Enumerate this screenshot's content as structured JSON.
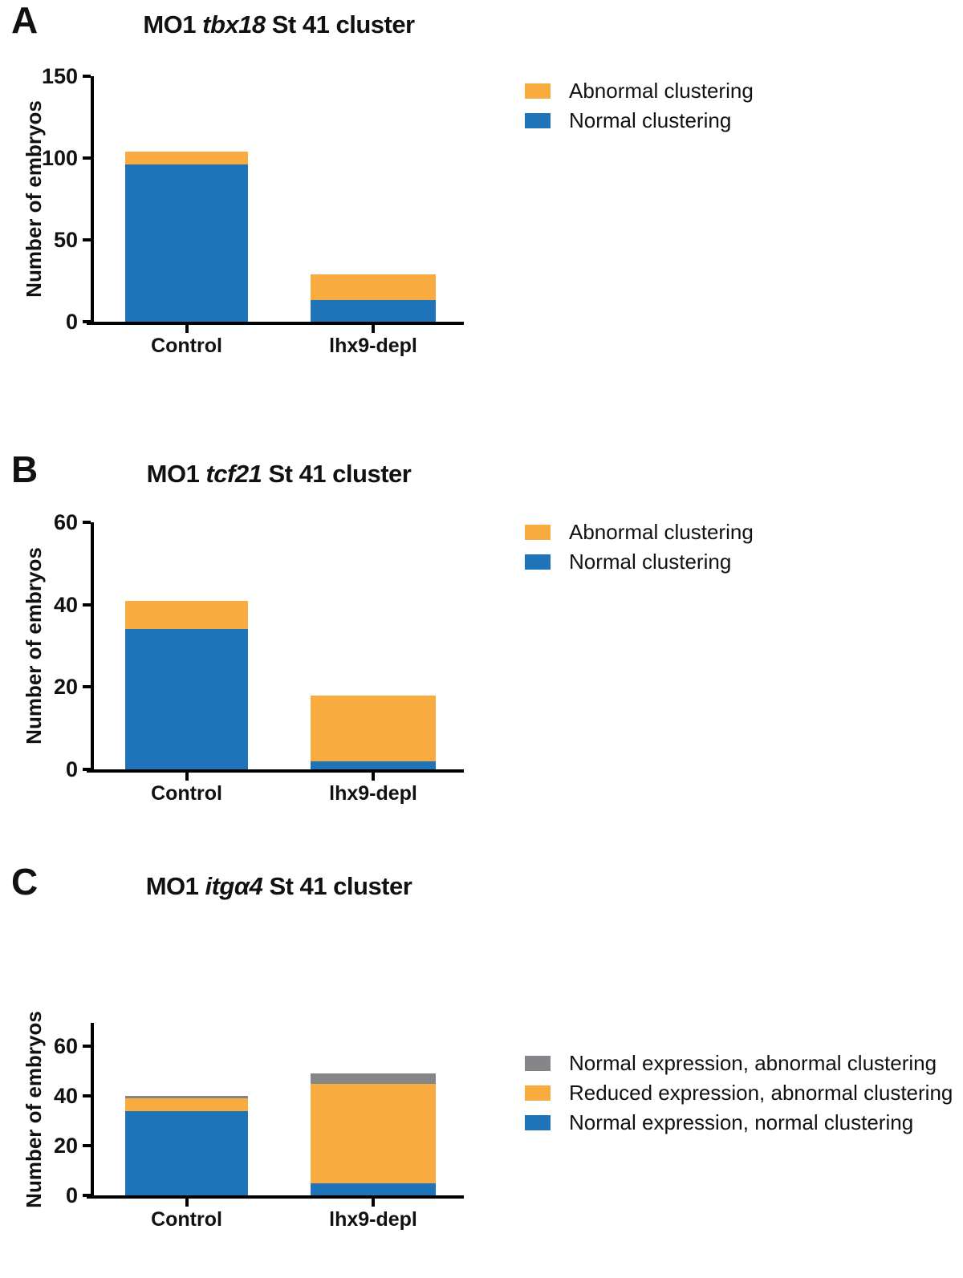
{
  "figure": {
    "background": "#FFFFFF"
  },
  "colors": {
    "blue": "#1F73B9",
    "orange": "#F8AC40",
    "gray": "#85868A",
    "axis": "#000000"
  },
  "chart_data": [
    {
      "type": "bar",
      "stacked": true,
      "panel_label": "A",
      "title": "MO1 tbx18 St 41 cluster",
      "title_prefix": "MO1 ",
      "title_gene": "tbx18",
      "title_suffix": " St 41 cluster",
      "xlabel": "",
      "ylabel": "Number of embryos",
      "categories": [
        "Control",
        "lhx9-depl"
      ],
      "series": [
        {
          "name": "Normal clustering",
          "color": "#1F73B9",
          "values": [
            96,
            13
          ]
        },
        {
          "name": "Abnormal clustering",
          "color": "#F8AC40",
          "values": [
            8,
            16
          ]
        }
      ],
      "totals": [
        104,
        29
      ],
      "ylim": [
        0,
        150
      ],
      "yticks": [
        0,
        50,
        100,
        150
      ],
      "grid": false,
      "legend_position": "right-top",
      "legend": [
        {
          "label": "Abnormal clustering",
          "color": "#F8AC40"
        },
        {
          "label": "Normal clustering",
          "color": "#1F73B9"
        }
      ]
    },
    {
      "type": "bar",
      "stacked": true,
      "panel_label": "B",
      "title": "MO1 tcf21 St 41 cluster",
      "title_prefix": "MO1 ",
      "title_gene": "tcf21",
      "title_suffix": " St 41 cluster",
      "xlabel": "",
      "ylabel": "Number of embryos",
      "categories": [
        "Control",
        "lhx9-depl"
      ],
      "series": [
        {
          "name": "Normal clustering",
          "color": "#1F73B9",
          "values": [
            34,
            2
          ]
        },
        {
          "name": "Abnormal clustering",
          "color": "#F8AC40",
          "values": [
            7,
            16
          ]
        }
      ],
      "totals": [
        41,
        18
      ],
      "ylim": [
        0,
        60
      ],
      "yticks": [
        0,
        20,
        40,
        60
      ],
      "grid": false,
      "legend_position": "right-top",
      "legend": [
        {
          "label": "Abnormal clustering",
          "color": "#F8AC40"
        },
        {
          "label": "Normal clustering",
          "color": "#1F73B9"
        }
      ]
    },
    {
      "type": "bar",
      "stacked": true,
      "panel_label": "C",
      "title": "MO1 itgα4 St 41 cluster",
      "title_prefix": "MO1 ",
      "title_gene": "itgα4",
      "title_suffix": " St 41 cluster",
      "xlabel": "",
      "ylabel": "Number of embryos",
      "categories": [
        "Control",
        "lhx9-depl"
      ],
      "series": [
        {
          "name": "Normal expression, normal clustering",
          "color": "#1F73B9",
          "values": [
            34,
            5
          ]
        },
        {
          "name": "Reduced expression, abnormal clustering",
          "color": "#F8AC40",
          "values": [
            5,
            40
          ]
        },
        {
          "name": "Normal expression, abnormal clustering",
          "color": "#85868A",
          "values": [
            1,
            4
          ]
        }
      ],
      "totals": [
        40,
        49
      ],
      "ylim": [
        0,
        69
      ],
      "yticks": [
        0,
        20,
        40,
        60
      ],
      "grid": false,
      "legend_position": "right-top",
      "legend": [
        {
          "label": "Normal expression, abnormal clustering",
          "color": "#85868A"
        },
        {
          "label": "Reduced expression, abnormal clustering",
          "color": "#F8AC40"
        },
        {
          "label": "Normal expression, normal clustering",
          "color": "#1F73B9"
        }
      ]
    }
  ]
}
